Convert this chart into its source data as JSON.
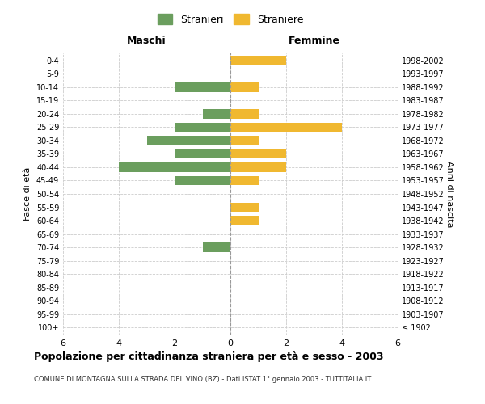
{
  "age_groups": [
    "100+",
    "95-99",
    "90-94",
    "85-89",
    "80-84",
    "75-79",
    "70-74",
    "65-69",
    "60-64",
    "55-59",
    "50-54",
    "45-49",
    "40-44",
    "35-39",
    "30-34",
    "25-29",
    "20-24",
    "15-19",
    "10-14",
    "5-9",
    "0-4"
  ],
  "birth_years": [
    "≤ 1902",
    "1903-1907",
    "1908-1912",
    "1913-1917",
    "1918-1922",
    "1923-1927",
    "1928-1932",
    "1933-1937",
    "1938-1942",
    "1943-1947",
    "1948-1952",
    "1953-1957",
    "1958-1962",
    "1963-1967",
    "1968-1972",
    "1973-1977",
    "1978-1982",
    "1983-1987",
    "1988-1992",
    "1993-1997",
    "1998-2002"
  ],
  "maschi": [
    0,
    0,
    0,
    0,
    0,
    0,
    1,
    0,
    0,
    0,
    0,
    2,
    4,
    2,
    3,
    2,
    1,
    0,
    2,
    0,
    0
  ],
  "femmine": [
    0,
    0,
    0,
    0,
    0,
    0,
    0,
    0,
    1,
    1,
    0,
    1,
    2,
    2,
    1,
    4,
    1,
    0,
    1,
    0,
    2
  ],
  "color_maschi": "#6b9e5e",
  "color_femmine": "#f0b830",
  "xlim": 6,
  "title": "Popolazione per cittadinanza straniera per età e sesso - 2003",
  "subtitle": "COMUNE DI MONTAGNA SULLA STRADA DEL VINO (BZ) - Dati ISTAT 1° gennaio 2003 - TUTTITALIA.IT",
  "ylabel_left": "Fasce di età",
  "ylabel_right": "Anni di nascita",
  "label_maschi": "Maschi",
  "label_femmine": "Femmine",
  "legend_maschi": "Stranieri",
  "legend_femmine": "Straniere",
  "grid_color": "#cccccc",
  "bar_height": 0.7
}
